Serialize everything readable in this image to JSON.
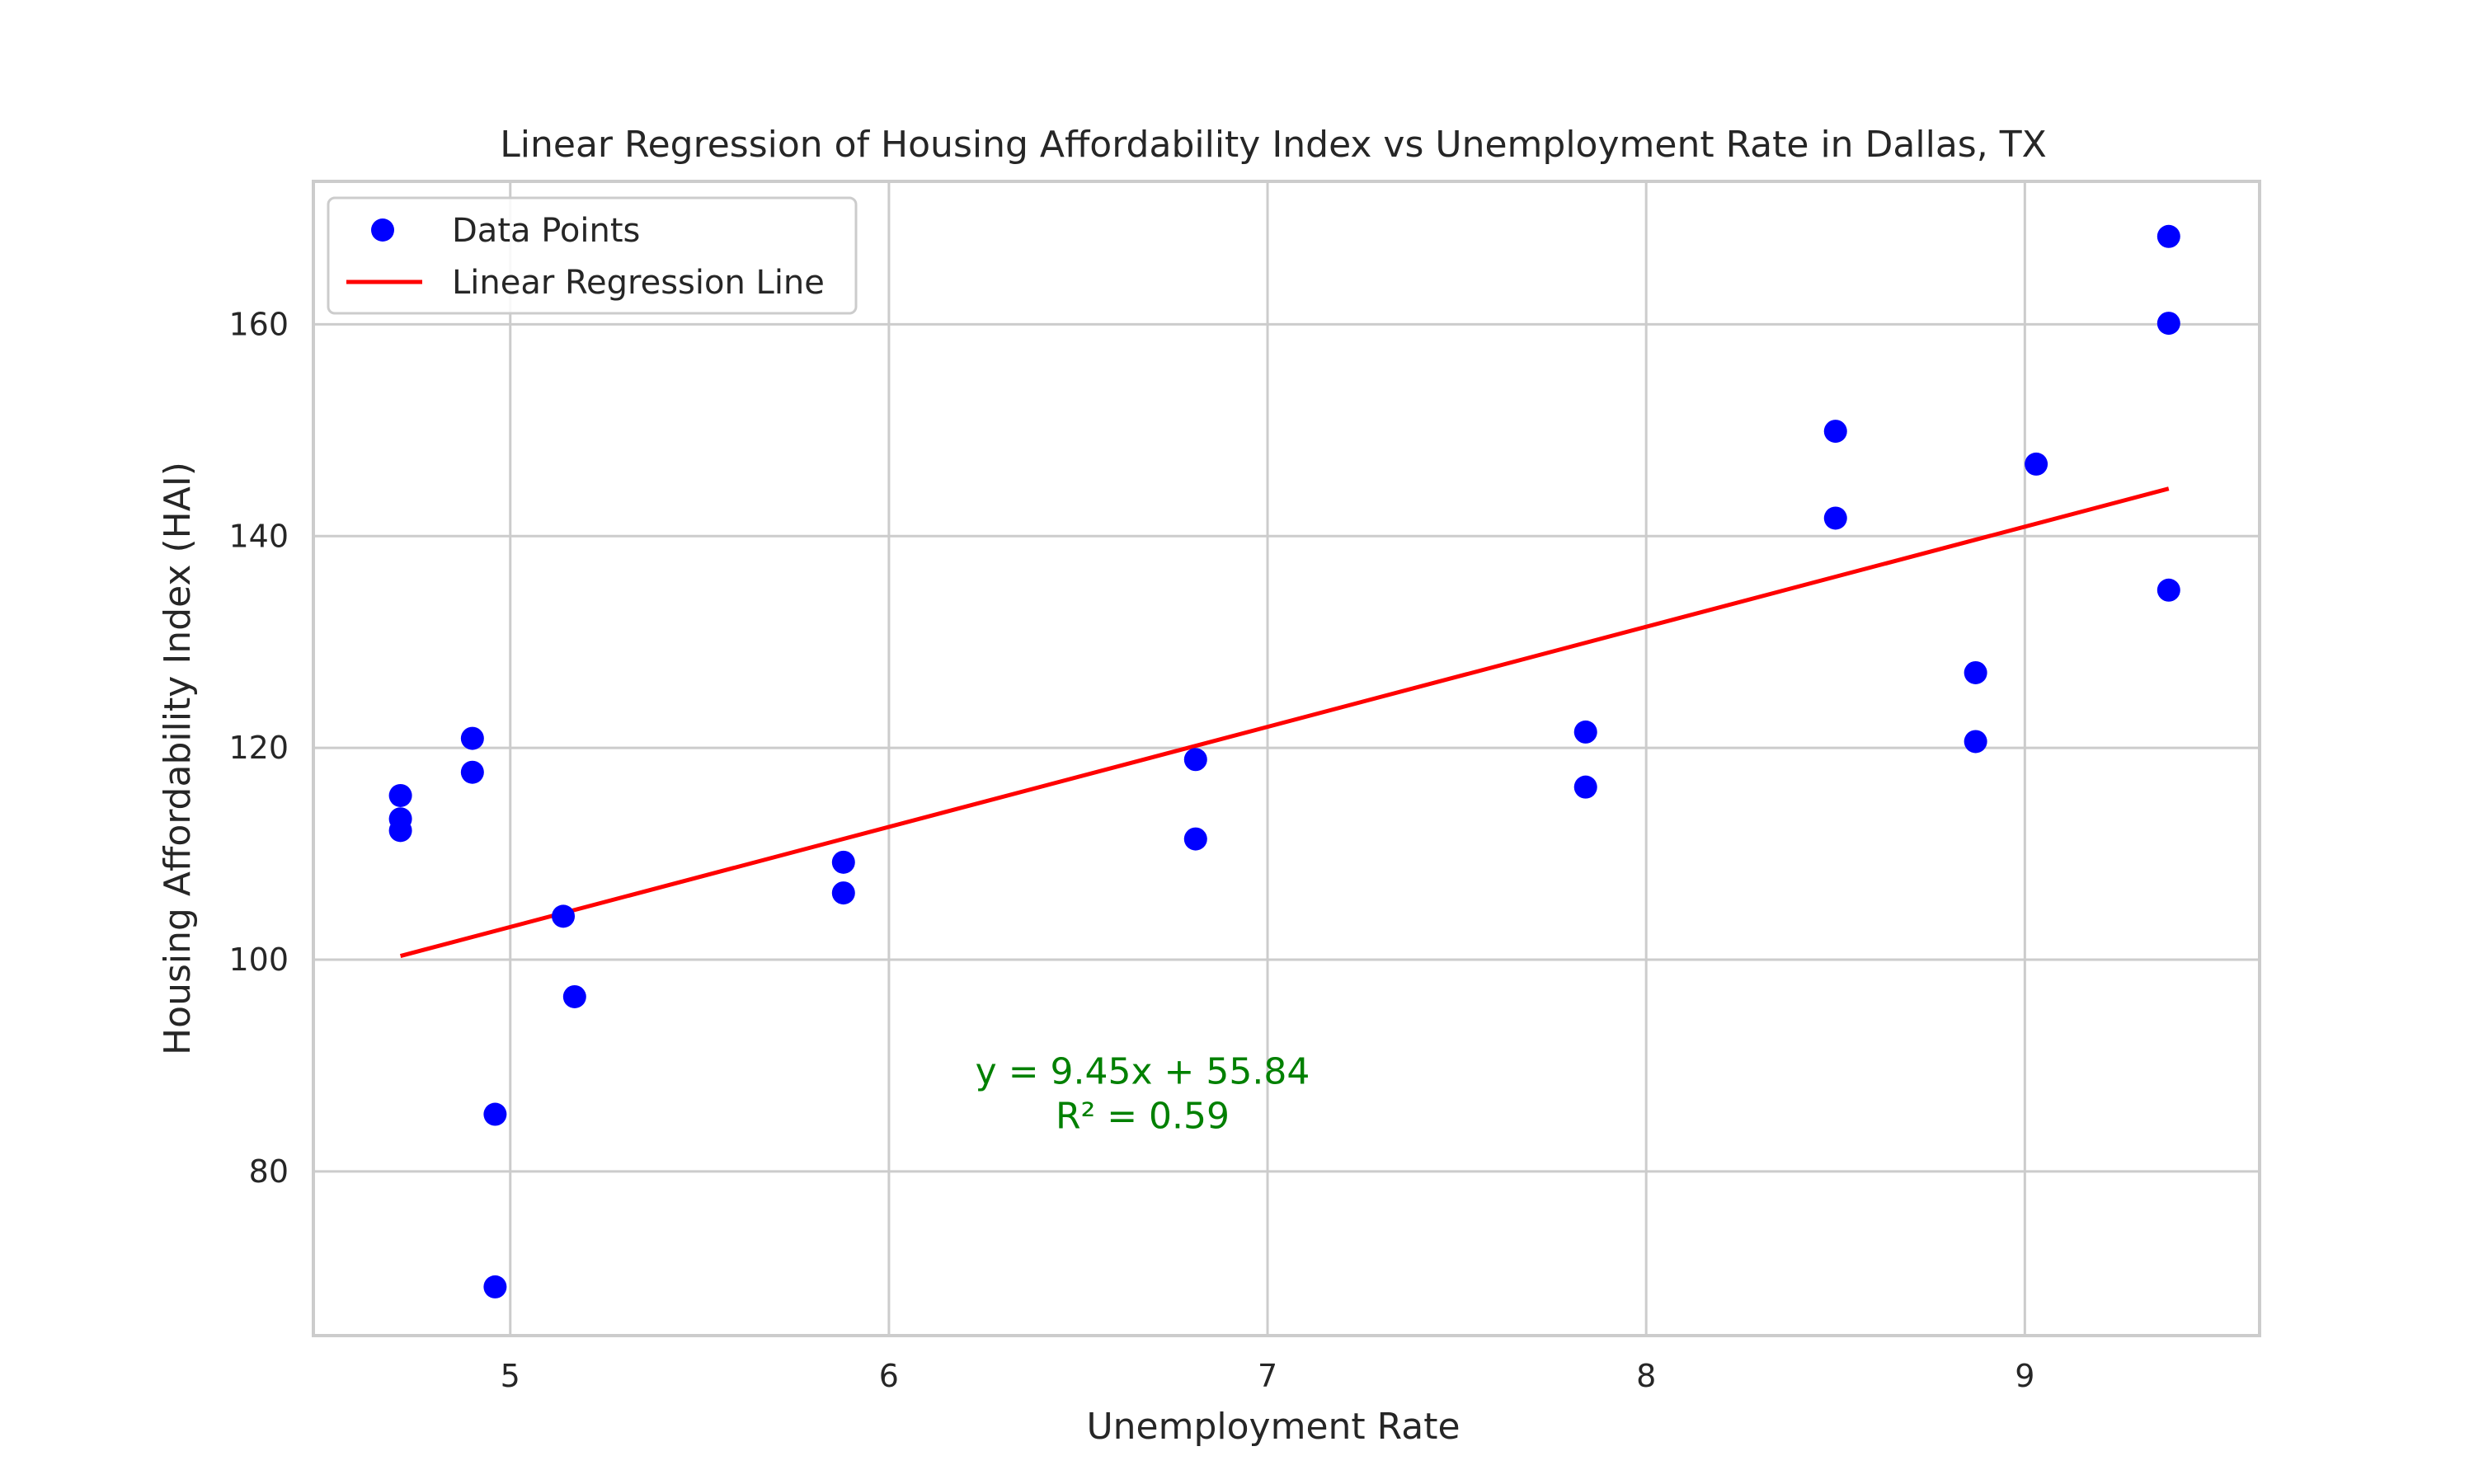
{
  "chart_data": {
    "type": "scatter",
    "title": "Linear Regression of Housing Affordability Index vs Unemployment Rate in Dallas, TX",
    "xlabel": "Unemployment Rate",
    "ylabel": "Housing Affordability Index (HAI)",
    "xlim": [
      4.48,
      9.62
    ],
    "ylim": [
      64.5,
      173.5
    ],
    "xticks": [
      5,
      6,
      7,
      8,
      9
    ],
    "yticks": [
      80,
      100,
      120,
      140,
      160
    ],
    "grid": true,
    "legend_position": "top-left",
    "series": [
      {
        "name": "Data Points",
        "kind": "scatter",
        "color": "#0000ff",
        "points": [
          {
            "x": 4.71,
            "y": 115.5
          },
          {
            "x": 4.71,
            "y": 113.3
          },
          {
            "x": 4.71,
            "y": 112.2
          },
          {
            "x": 4.9,
            "y": 120.9
          },
          {
            "x": 4.9,
            "y": 117.7
          },
          {
            "x": 4.96,
            "y": 85.4
          },
          {
            "x": 4.96,
            "y": 69.1
          },
          {
            "x": 5.14,
            "y": 104.1
          },
          {
            "x": 5.17,
            "y": 96.5
          },
          {
            "x": 5.88,
            "y": 109.2
          },
          {
            "x": 5.88,
            "y": 106.3
          },
          {
            "x": 6.81,
            "y": 118.9
          },
          {
            "x": 6.81,
            "y": 111.4
          },
          {
            "x": 7.84,
            "y": 121.5
          },
          {
            "x": 7.84,
            "y": 116.3
          },
          {
            "x": 8.5,
            "y": 149.9
          },
          {
            "x": 8.5,
            "y": 141.7
          },
          {
            "x": 8.87,
            "y": 127.1
          },
          {
            "x": 8.87,
            "y": 120.6
          },
          {
            "x": 9.03,
            "y": 146.8
          },
          {
            "x": 9.38,
            "y": 168.3
          },
          {
            "x": 9.38,
            "y": 160.1
          },
          {
            "x": 9.38,
            "y": 134.9
          }
        ]
      },
      {
        "name": "Linear Regression Line",
        "kind": "line",
        "color": "#ff0000",
        "slope": 9.45,
        "intercept": 55.84,
        "x_range": [
          4.71,
          9.38
        ]
      }
    ],
    "annotation": {
      "line1": "y = 9.45x + 55.84",
      "line2": "R² = 0.59",
      "x": 6.67,
      "y": 87.5,
      "color": "#008000"
    }
  }
}
